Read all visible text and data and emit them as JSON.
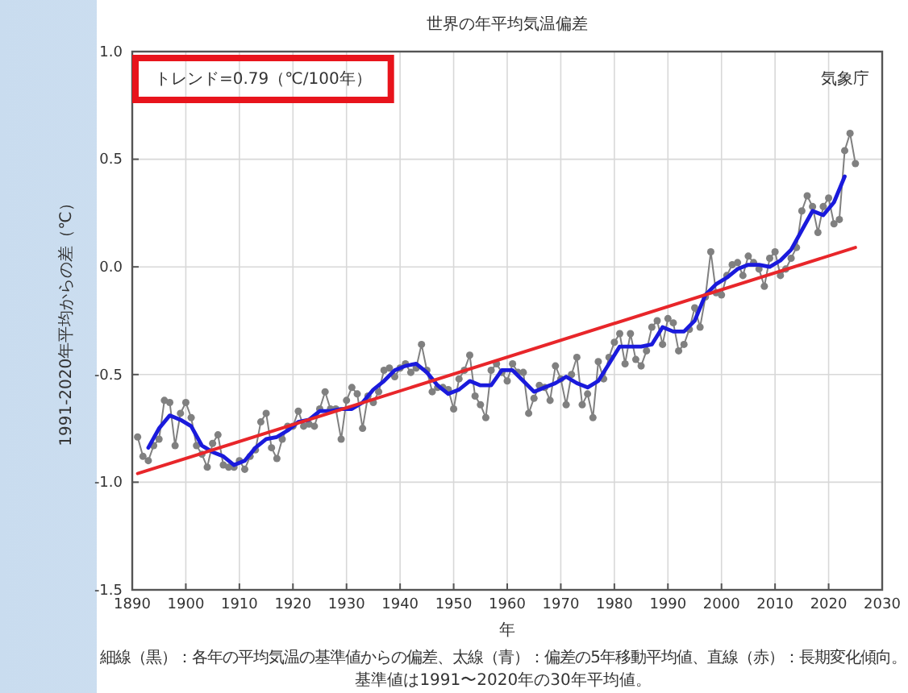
{
  "chart_data": {
    "type": "line",
    "title": "世界の年平均気温偏差",
    "xlabel": "年",
    "ylabel": "1991-2020年平均からの差（℃）",
    "xlim": [
      1890,
      2030
    ],
    "xticks": [
      1890,
      1900,
      1910,
      1920,
      1930,
      1940,
      1950,
      1960,
      1970,
      1980,
      1990,
      2000,
      2010,
      2020,
      2030
    ],
    "ylim": [
      -1.5,
      1.0
    ],
    "yticks": [
      {
        "value": -1.5,
        "label": "-1.5"
      },
      {
        "value": -1.0,
        "label": "-1.0"
      },
      {
        "value": -0.5,
        "label": "-0.5"
      },
      {
        "value": 0,
        "label": "0.0"
      },
      {
        "value": 0.5,
        "label": "0.5"
      },
      {
        "value": 1.0,
        "label": "1.0"
      }
    ],
    "grid": true,
    "annotations": [
      "トレンド=0.79（℃/100年）",
      "気象庁",
      "細線（黒）：各年の平均気温の基準値からの偏差、太線（青）：偏差の5年移動平均値、直線（赤）：長期変化傾向。",
      "基準値は1991〜2020年の30年平均値。"
    ],
    "series": [
      {
        "color": "#808080",
        "marker": "circle",
        "x": [
          1891,
          1892,
          1893,
          1894,
          1895,
          1896,
          1897,
          1898,
          1899,
          1900,
          1901,
          1902,
          1903,
          1904,
          1905,
          1906,
          1907,
          1908,
          1909,
          1910,
          1911,
          1912,
          1913,
          1914,
          1915,
          1916,
          1917,
          1918,
          1919,
          1920,
          1921,
          1922,
          1923,
          1924,
          1925,
          1926,
          1927,
          1928,
          1929,
          1930,
          1931,
          1932,
          1933,
          1934,
          1935,
          1936,
          1937,
          1938,
          1939,
          1940,
          1941,
          1942,
          1943,
          1944,
          1945,
          1946,
          1947,
          1948,
          1949,
          1950,
          1951,
          1952,
          1953,
          1954,
          1955,
          1956,
          1957,
          1958,
          1959,
          1960,
          1961,
          1962,
          1963,
          1964,
          1965,
          1966,
          1967,
          1968,
          1969,
          1970,
          1971,
          1972,
          1973,
          1974,
          1975,
          1976,
          1977,
          1978,
          1979,
          1980,
          1981,
          1982,
          1983,
          1984,
          1985,
          1986,
          1987,
          1988,
          1989,
          1990,
          1991,
          1992,
          1993,
          1994,
          1995,
          1996,
          1997,
          1998,
          1999,
          2000,
          2001,
          2002,
          2003,
          2004,
          2005,
          2006,
          2007,
          2008,
          2009,
          2010,
          2011,
          2012,
          2013,
          2014,
          2015,
          2016,
          2017,
          2018,
          2019,
          2020,
          2021,
          2022,
          2023,
          2024,
          2025
        ],
        "values": [
          -0.79,
          -0.88,
          -0.9,
          -0.83,
          -0.8,
          -0.62,
          -0.63,
          -0.83,
          -0.68,
          -0.63,
          -0.7,
          -0.83,
          -0.87,
          -0.93,
          -0.82,
          -0.78,
          -0.92,
          -0.93,
          -0.93,
          -0.9,
          -0.94,
          -0.88,
          -0.85,
          -0.72,
          -0.68,
          -0.84,
          -0.89,
          -0.8,
          -0.74,
          -0.74,
          -0.67,
          -0.74,
          -0.73,
          -0.74,
          -0.66,
          -0.58,
          -0.66,
          -0.66,
          -0.8,
          -0.62,
          -0.56,
          -0.59,
          -0.75,
          -0.6,
          -0.63,
          -0.58,
          -0.48,
          -0.47,
          -0.51,
          -0.47,
          -0.45,
          -0.49,
          -0.47,
          -0.36,
          -0.48,
          -0.58,
          -0.56,
          -0.56,
          -0.57,
          -0.66,
          -0.52,
          -0.48,
          -0.41,
          -0.6,
          -0.64,
          -0.7,
          -0.48,
          -0.45,
          -0.49,
          -0.53,
          -0.45,
          -0.49,
          -0.49,
          -0.68,
          -0.61,
          -0.55,
          -0.56,
          -0.62,
          -0.46,
          -0.52,
          -0.64,
          -0.5,
          -0.42,
          -0.64,
          -0.59,
          -0.7,
          -0.44,
          -0.52,
          -0.42,
          -0.35,
          -0.31,
          -0.45,
          -0.31,
          -0.43,
          -0.46,
          -0.39,
          -0.28,
          -0.25,
          -0.36,
          -0.24,
          -0.26,
          -0.39,
          -0.36,
          -0.29,
          -0.19,
          -0.28,
          -0.14,
          0.07,
          -0.12,
          -0.13,
          -0.04,
          0.01,
          0.02,
          -0.04,
          0.05,
          0.02,
          -0.01,
          -0.09,
          0.04,
          0.07,
          -0.04,
          -0.01,
          0.04,
          0.09,
          0.26,
          0.33,
          0.28,
          0.16,
          0.28,
          0.32,
          0.2,
          0.22,
          0.54,
          0.62,
          0.48
        ]
      },
      {
        "color": "#1a1adc",
        "marker": "none",
        "x": [
          1893,
          1895,
          1897,
          1899,
          1901,
          1903,
          1905,
          1907,
          1909,
          1911,
          1913,
          1915,
          1917,
          1919,
          1921,
          1923,
          1925,
          1927,
          1929,
          1931,
          1933,
          1935,
          1937,
          1939,
          1941,
          1943,
          1945,
          1947,
          1949,
          1951,
          1953,
          1955,
          1957,
          1959,
          1961,
          1963,
          1965,
          1967,
          1969,
          1971,
          1973,
          1975,
          1977,
          1979,
          1981,
          1983,
          1985,
          1987,
          1989,
          1991,
          1993,
          1995,
          1997,
          1999,
          2001,
          2003,
          2005,
          2007,
          2009,
          2011,
          2013,
          2015,
          2017,
          2019,
          2021,
          2023
        ],
        "values": [
          -0.84,
          -0.75,
          -0.69,
          -0.71,
          -0.74,
          -0.83,
          -0.86,
          -0.88,
          -0.92,
          -0.9,
          -0.84,
          -0.8,
          -0.79,
          -0.76,
          -0.72,
          -0.71,
          -0.67,
          -0.67,
          -0.66,
          -0.66,
          -0.63,
          -0.57,
          -0.53,
          -0.48,
          -0.46,
          -0.45,
          -0.49,
          -0.55,
          -0.59,
          -0.57,
          -0.53,
          -0.55,
          -0.55,
          -0.48,
          -0.48,
          -0.53,
          -0.58,
          -0.56,
          -0.54,
          -0.51,
          -0.54,
          -0.56,
          -0.53,
          -0.45,
          -0.37,
          -0.37,
          -0.37,
          -0.36,
          -0.28,
          -0.3,
          -0.3,
          -0.25,
          -0.13,
          -0.08,
          -0.05,
          -0.01,
          0.01,
          0.01,
          0.0,
          0.03,
          0.08,
          0.17,
          0.26,
          0.24,
          0.3,
          0.42
        ]
      },
      {
        "color": "#e8262a",
        "marker": "none",
        "x": [
          1891,
          2025
        ],
        "values": [
          -0.96,
          0.09
        ]
      }
    ]
  }
}
